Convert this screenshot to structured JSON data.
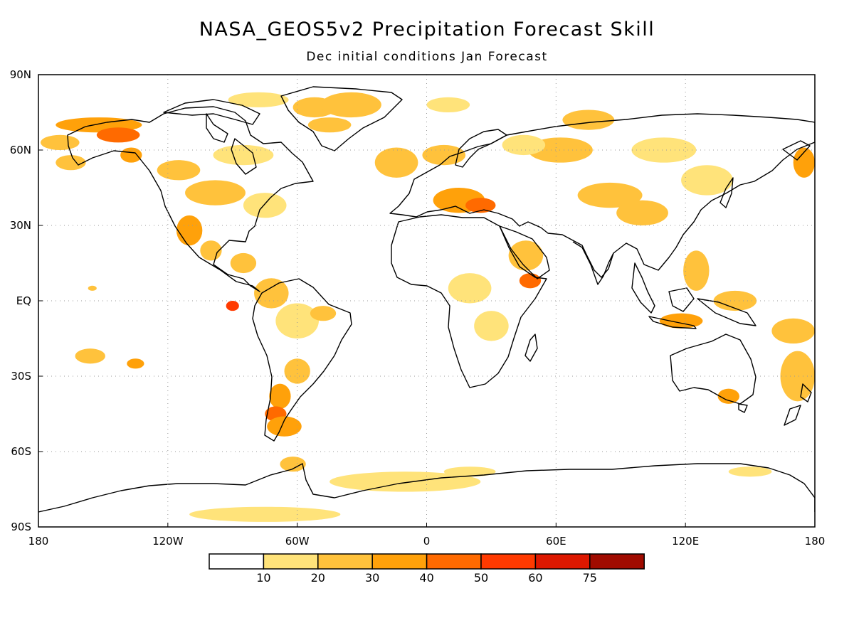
{
  "title": "NASA_GEOS5v2 Precipitation Forecast Skill",
  "subtitle": "Dec initial conditions   Jan Forecast",
  "map": {
    "projection": "cylindrical-equidistant",
    "extent": {
      "lon": [
        -180,
        180
      ],
      "lat": [
        -90,
        90
      ]
    },
    "grid": "dotted",
    "lat_ticks": [
      {
        "value": 90,
        "label": "90N"
      },
      {
        "value": 60,
        "label": "60N"
      },
      {
        "value": 30,
        "label": "30N"
      },
      {
        "value": 0,
        "label": "EQ"
      },
      {
        "value": -30,
        "label": "30S"
      },
      {
        "value": -60,
        "label": "60S"
      },
      {
        "value": -90,
        "label": "90S"
      }
    ],
    "lon_ticks": [
      {
        "value": -180,
        "label": "180"
      },
      {
        "value": -120,
        "label": "120W"
      },
      {
        "value": -60,
        "label": "60W"
      },
      {
        "value": 0,
        "label": "0"
      },
      {
        "value": 60,
        "label": "60E"
      },
      {
        "value": 120,
        "label": "120E"
      },
      {
        "value": 180,
        "label": "180"
      }
    ]
  },
  "colorbar": {
    "colors": [
      "#ffffff",
      "#ffe37a",
      "#ffc23c",
      "#ffa10a",
      "#ff6a00",
      "#ff3a00",
      "#dd1800",
      "#a00b00"
    ],
    "labels": [
      "10",
      "20",
      "30",
      "40",
      "50",
      "60",
      "75"
    ]
  },
  "skill_patches": [
    {
      "lon": -152,
      "lat": 70,
      "rx": 20,
      "ry": 3,
      "level": 3
    },
    {
      "lon": -143,
      "lat": 66,
      "rx": 10,
      "ry": 3,
      "level": 4
    },
    {
      "lon": -170,
      "lat": 63,
      "rx": 9,
      "ry": 3,
      "level": 2
    },
    {
      "lon": -165,
      "lat": 55,
      "rx": 7,
      "ry": 3,
      "level": 2
    },
    {
      "lon": -137,
      "lat": 58,
      "rx": 5,
      "ry": 3,
      "level": 3
    },
    {
      "lon": -115,
      "lat": 52,
      "rx": 10,
      "ry": 4,
      "level": 2
    },
    {
      "lon": -85,
      "lat": 58,
      "rx": 14,
      "ry": 4,
      "level": 1
    },
    {
      "lon": -78,
      "lat": 80,
      "rx": 14,
      "ry": 3,
      "level": 1
    },
    {
      "lon": -52,
      "lat": 77,
      "rx": 10,
      "ry": 4,
      "level": 2
    },
    {
      "lon": -45,
      "lat": 70,
      "rx": 10,
      "ry": 3,
      "level": 2
    },
    {
      "lon": -98,
      "lat": 43,
      "rx": 14,
      "ry": 5,
      "level": 2
    },
    {
      "lon": -75,
      "lat": 38,
      "rx": 10,
      "ry": 5,
      "level": 1
    },
    {
      "lon": -110,
      "lat": 28,
      "rx": 6,
      "ry": 6,
      "level": 3
    },
    {
      "lon": -100,
      "lat": 20,
      "rx": 5,
      "ry": 4,
      "level": 2
    },
    {
      "lon": -85,
      "lat": 15,
      "rx": 6,
      "ry": 4,
      "level": 2
    },
    {
      "lon": -72,
      "lat": 3,
      "rx": 8,
      "ry": 6,
      "level": 2
    },
    {
      "lon": -60,
      "lat": -8,
      "rx": 10,
      "ry": 7,
      "level": 1
    },
    {
      "lon": -48,
      "lat": -5,
      "rx": 6,
      "ry": 3,
      "level": 2
    },
    {
      "lon": -60,
      "lat": -28,
      "rx": 6,
      "ry": 5,
      "level": 2
    },
    {
      "lon": -68,
      "lat": -38,
      "rx": 5,
      "ry": 5,
      "level": 3
    },
    {
      "lon": -70,
      "lat": -45,
      "rx": 5,
      "ry": 3,
      "level": 4
    },
    {
      "lon": -66,
      "lat": -50,
      "rx": 8,
      "ry": 4,
      "level": 3
    },
    {
      "lon": -90,
      "lat": -2,
      "rx": 3,
      "ry": 2,
      "level": 5
    },
    {
      "lon": -156,
      "lat": -22,
      "rx": 7,
      "ry": 3,
      "level": 2
    },
    {
      "lon": -135,
      "lat": -25,
      "rx": 4,
      "ry": 2,
      "level": 3
    },
    {
      "lon": -155,
      "lat": 5,
      "rx": 2,
      "ry": 1,
      "level": 2
    },
    {
      "lon": -14,
      "lat": 55,
      "rx": 10,
      "ry": 6,
      "level": 2
    },
    {
      "lon": 8,
      "lat": 58,
      "rx": 10,
      "ry": 4,
      "level": 2
    },
    {
      "lon": 15,
      "lat": 40,
      "rx": 12,
      "ry": 5,
      "level": 3
    },
    {
      "lon": 25,
      "lat": 38,
      "rx": 7,
      "ry": 3,
      "level": 4
    },
    {
      "lon": -35,
      "lat": 78,
      "rx": 14,
      "ry": 5,
      "level": 2
    },
    {
      "lon": 10,
      "lat": 78,
      "rx": 10,
      "ry": 3,
      "level": 1
    },
    {
      "lon": 62,
      "lat": 60,
      "rx": 15,
      "ry": 5,
      "level": 2
    },
    {
      "lon": 45,
      "lat": 62,
      "rx": 10,
      "ry": 4,
      "level": 1
    },
    {
      "lon": 110,
      "lat": 60,
      "rx": 15,
      "ry": 5,
      "level": 1
    },
    {
      "lon": 75,
      "lat": 72,
      "rx": 12,
      "ry": 4,
      "level": 2
    },
    {
      "lon": 85,
      "lat": 42,
      "rx": 15,
      "ry": 5,
      "level": 2
    },
    {
      "lon": 100,
      "lat": 35,
      "rx": 12,
      "ry": 5,
      "level": 2
    },
    {
      "lon": 130,
      "lat": 48,
      "rx": 12,
      "ry": 6,
      "level": 1
    },
    {
      "lon": 46,
      "lat": 18,
      "rx": 8,
      "ry": 6,
      "level": 2
    },
    {
      "lon": 48,
      "lat": 8,
      "rx": 5,
      "ry": 3,
      "level": 4
    },
    {
      "lon": 20,
      "lat": 5,
      "rx": 10,
      "ry": 6,
      "level": 1
    },
    {
      "lon": 30,
      "lat": -10,
      "rx": 8,
      "ry": 6,
      "level": 1
    },
    {
      "lon": 118,
      "lat": -8,
      "rx": 10,
      "ry": 3,
      "level": 3
    },
    {
      "lon": 143,
      "lat": 0,
      "rx": 10,
      "ry": 4,
      "level": 2
    },
    {
      "lon": 125,
      "lat": 12,
      "rx": 6,
      "ry": 8,
      "level": 2
    },
    {
      "lon": 170,
      "lat": -12,
      "rx": 10,
      "ry": 5,
      "level": 2
    },
    {
      "lon": 172,
      "lat": -30,
      "rx": 8,
      "ry": 10,
      "level": 2
    },
    {
      "lon": 140,
      "lat": -38,
      "rx": 5,
      "ry": 3,
      "level": 3
    },
    {
      "lon": 175,
      "lat": 55,
      "rx": 5,
      "ry": 6,
      "level": 3
    },
    {
      "lon": -10,
      "lat": -72,
      "rx": 35,
      "ry": 4,
      "level": 1
    },
    {
      "lon": 20,
      "lat": -68,
      "rx": 12,
      "ry": 2,
      "level": 1
    },
    {
      "lon": 150,
      "lat": -68,
      "rx": 10,
      "ry": 2,
      "level": 1
    },
    {
      "lon": -62,
      "lat": -65,
      "rx": 6,
      "ry": 3,
      "level": 2
    },
    {
      "lon": -75,
      "lat": -85,
      "rx": 35,
      "ry": 3,
      "level": 1
    }
  ]
}
